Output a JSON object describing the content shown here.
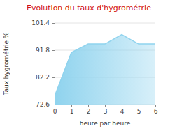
{
  "chart_data": {
    "type": "area",
    "title": "Evolution du taux d'hygrométrie",
    "x_label": "heure par heure",
    "y_label": "Taux hygrométrie %",
    "x": [
      0,
      1,
      2,
      3,
      4,
      5,
      6
    ],
    "values": [
      75.5,
      91,
      94,
      94,
      97.3,
      94,
      94
    ],
    "color": "#8fd3ee",
    "xlim": [
      0,
      6
    ],
    "xticks": [
      0,
      1,
      2,
      3,
      4,
      5,
      6
    ],
    "ylim": [
      72.6,
      101.4
    ],
    "yticks": [
      72.6,
      82.2,
      91.8,
      101.4
    ],
    "grid": true
  }
}
